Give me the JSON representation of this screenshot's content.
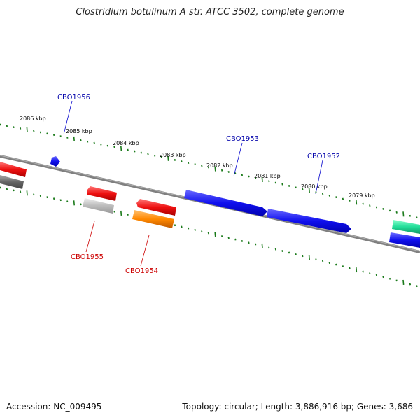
{
  "title": "Clostridium botulinum A str. ATCC 3502, complete genome",
  "footer": {
    "accession": "Accession: NC_009495",
    "summary": "Topology: circular; Length: 3,886,916 bp; Genes: 3,686"
  },
  "ticks": [
    {
      "label": "2086 kbp"
    },
    {
      "label": "2085 kbp"
    },
    {
      "label": "2084 kbp"
    },
    {
      "label": "2083 kbp"
    },
    {
      "label": "2082 kbp"
    },
    {
      "label": "2081 kbp"
    },
    {
      "label": "2080 kbp"
    },
    {
      "label": "2079 kbp"
    }
  ],
  "forward_genes": [
    {
      "id": "CBO1956",
      "color": "#1a1aff"
    },
    {
      "id": "CBO1953",
      "color": "#1a1aff"
    },
    {
      "id": "CBO1952",
      "color": "#1a1aff"
    }
  ],
  "reverse_genes": [
    {
      "id": "CBO1955",
      "color": "#dd0000"
    },
    {
      "id": "CBO1954",
      "color": "#dd0000"
    }
  ],
  "colors": {
    "forward_label": "#0000aa",
    "reverse_label": "#cc0000",
    "tick": "#1a7a1a",
    "backbone": "#808080",
    "red_gene": "#ee1111",
    "orange_gene": "#ff8800",
    "gray_gene": "#777777",
    "light_gray_gene": "#bbbbbb",
    "teal_gene": "#22dd99"
  }
}
